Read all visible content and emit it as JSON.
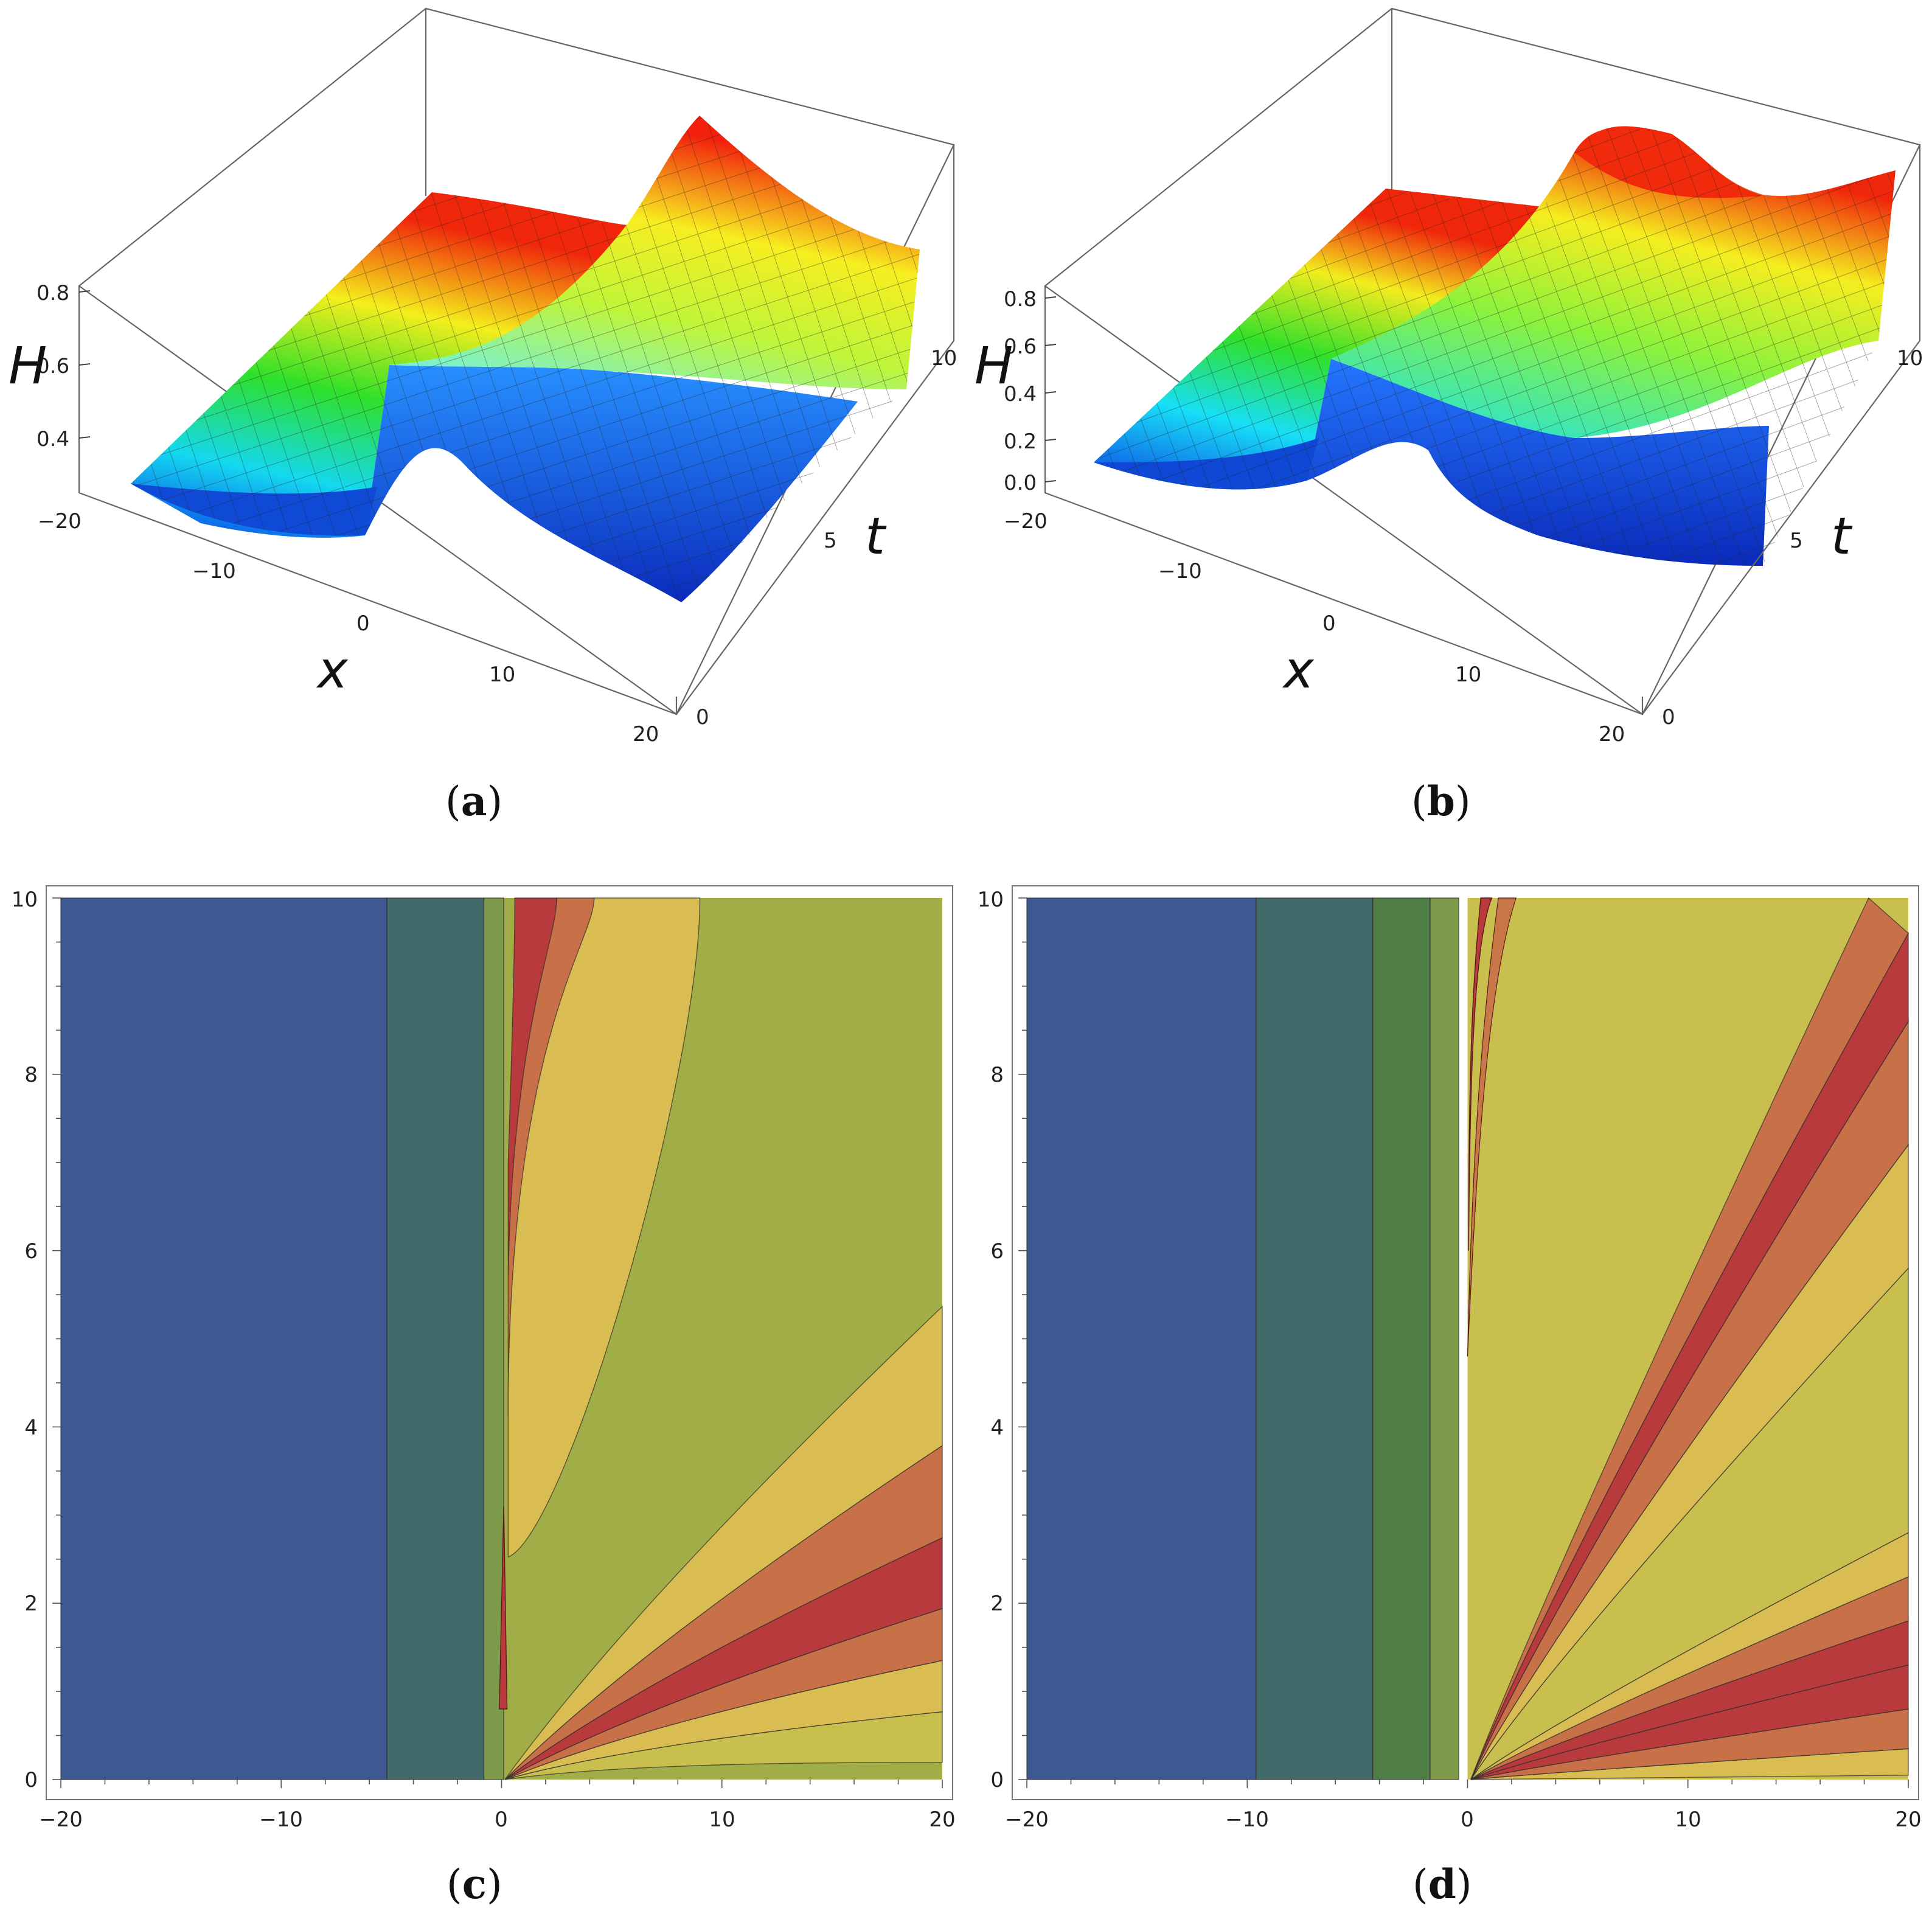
{
  "panels": {
    "a": {
      "label_open": "(",
      "label_letter": "a",
      "label_close": ")",
      "axis_labels": {
        "x": "x",
        "t": "t",
        "H": "H"
      },
      "x_ticks": [
        "−20",
        "−10",
        "0",
        "10",
        "20"
      ],
      "t_ticks": [
        "0",
        "5",
        "10"
      ],
      "H_ticks": [
        "0.4",
        "0.6",
        "0.8"
      ]
    },
    "b": {
      "label_open": "(",
      "label_letter": "b",
      "label_close": ")",
      "axis_labels": {
        "x": "x",
        "t": "t",
        "H": "H"
      },
      "x_ticks": [
        "−20",
        "−10",
        "0",
        "10",
        "20"
      ],
      "t_ticks": [
        "0",
        "5",
        "10"
      ],
      "H_ticks": [
        "0.0",
        "0.2",
        "0.4",
        "0.6",
        "0.8"
      ]
    },
    "c": {
      "label_open": "(",
      "label_letter": "c",
      "label_close": ")",
      "x_ticks": [
        "−20",
        "−10",
        "0",
        "10",
        "20"
      ],
      "y_ticks": [
        "0",
        "2",
        "4",
        "6",
        "8",
        "10"
      ]
    },
    "d": {
      "label_open": "(",
      "label_letter": "d",
      "label_close": ")",
      "x_ticks": [
        "−20",
        "−10",
        "0",
        "10",
        "20"
      ],
      "y_ticks": [
        "0",
        "2",
        "4",
        "6",
        "8",
        "10"
      ]
    }
  },
  "colors": {
    "blue": "#3e5891",
    "teal": "#436a6a",
    "green": "#4e7d45",
    "olive": "#7c9a4a",
    "yellowgreen": "#a1ad47",
    "yellow": "#c9bf4e",
    "gold": "#d9bd52",
    "orange": "#c87048",
    "red": "#b93a3c"
  },
  "chart_data": [
    {
      "panel": "a",
      "type": "surface3d",
      "x_range": [
        -20,
        20
      ],
      "t_range": [
        0,
        10
      ],
      "H_range": [
        0.25,
        0.85
      ],
      "profile_x": [
        -20,
        -10,
        -5,
        -1,
        0,
        1,
        5,
        10,
        20
      ],
      "H_at_t0": [
        0.28,
        0.26,
        0.25,
        0.3,
        0.65,
        0.45,
        0.38,
        0.3,
        0.27
      ],
      "H_at_t10": [
        0.45,
        0.55,
        0.65,
        0.75,
        0.8,
        0.72,
        0.62,
        0.55,
        0.5
      ]
    },
    {
      "panel": "b",
      "type": "surface3d",
      "x_range": [
        -20,
        20
      ],
      "t_range": [
        0,
        10
      ],
      "H_range": [
        0.0,
        0.85
      ],
      "profile_x": [
        -20,
        -10,
        -5,
        -1,
        0,
        1,
        5,
        10,
        20
      ],
      "H_at_t0": [
        0.1,
        0.05,
        0.02,
        0.1,
        0.45,
        0.25,
        0.1,
        0.05,
        0.02
      ],
      "H_at_t10": [
        0.55,
        0.65,
        0.75,
        0.8,
        0.85,
        0.78,
        0.7,
        0.65,
        0.6
      ]
    },
    {
      "panel": "c",
      "type": "contour",
      "x_range": [
        -20,
        20
      ],
      "y_range": [
        0,
        10
      ],
      "vertical_bands": [
        {
          "x_from": -20,
          "x_to": -5.2,
          "color": "blue"
        },
        {
          "x_from": -5.2,
          "x_to": -0.8,
          "color": "teal"
        },
        {
          "x_from": -0.8,
          "x_to": 0.1,
          "color": "olive"
        }
      ],
      "background_right": "yellowgreen",
      "fan": {
        "rays_deg_from_horizontal": [
          1,
          4,
          7,
          10,
          14,
          19,
          26
        ],
        "colors": [
          "yellow",
          "gold",
          "orange",
          "red",
          "orange",
          "gold"
        ]
      },
      "upper_fan": {
        "rays_x_at_t10": [
          0.6,
          2.5,
          4.2,
          9.0
        ],
        "colors": [
          "red",
          "orange",
          "gold"
        ]
      }
    },
    {
      "panel": "d",
      "type": "contour",
      "x_range": [
        -20,
        20
      ],
      "y_range": [
        0,
        10
      ],
      "vertical_bands": [
        {
          "x_from": -20,
          "x_to": -9.6,
          "color": "blue"
        },
        {
          "x_from": -9.6,
          "x_to": -4.3,
          "color": "teal"
        },
        {
          "x_from": -4.3,
          "x_to": -1.7,
          "color": "green"
        },
        {
          "x_from": -1.7,
          "x_to": -0.4,
          "color": "olive"
        }
      ],
      "background_right": "yellow",
      "fan": {
        "rays_y_at_x20": [
          0.05,
          0.35,
          0.8,
          1.3,
          1.8,
          2.3,
          2.8,
          5.8,
          7.2,
          8.6,
          9.6,
          10.6
        ],
        "colors": [
          "gold",
          "orange",
          "red",
          "red",
          "orange",
          "gold",
          "yellow",
          "gold",
          "orange",
          "red",
          "orange"
        ]
      }
    }
  ]
}
